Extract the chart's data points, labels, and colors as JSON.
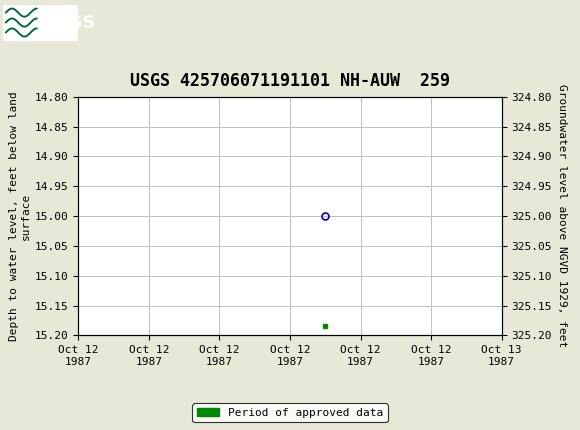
{
  "title": "USGS 425706071191101 NH-AUW  259",
  "header_bg_color": "#006B3C",
  "plot_bg_color": "#ffffff",
  "outer_bg_color": "#e8e8d8",
  "grid_color": "#c0c0c0",
  "left_ylabel": "Depth to water level, feet below land\nsurface",
  "right_ylabel": "Groundwater level above NGVD 1929, feet",
  "ylim_left": [
    14.8,
    15.2
  ],
  "ylim_right": [
    324.8,
    325.2
  ],
  "yticks_left": [
    14.8,
    14.85,
    14.9,
    14.95,
    15.0,
    15.05,
    15.1,
    15.15,
    15.2
  ],
  "yticks_right": [
    324.8,
    324.85,
    324.9,
    324.95,
    325.0,
    325.05,
    325.1,
    325.15,
    325.2
  ],
  "xtick_labels": [
    "Oct 12\n1987",
    "Oct 12\n1987",
    "Oct 12\n1987",
    "Oct 12\n1987",
    "Oct 12\n1987",
    "Oct 12\n1987",
    "Oct 13\n1987"
  ],
  "data_point_x": 3.5,
  "data_point_y": 15.0,
  "data_point_color": "#0000cc",
  "data_point_markersize": 5,
  "bar_x": 3.5,
  "bar_y": 15.185,
  "bar_color": "#008800",
  "legend_label": "Period of approved data",
  "font_family": "DejaVu Sans Mono",
  "title_fontsize": 12,
  "axis_fontsize": 8,
  "tick_fontsize": 8,
  "xlim": [
    0,
    6
  ],
  "xtick_positions": [
    0,
    1,
    2,
    3,
    4,
    5,
    6
  ]
}
